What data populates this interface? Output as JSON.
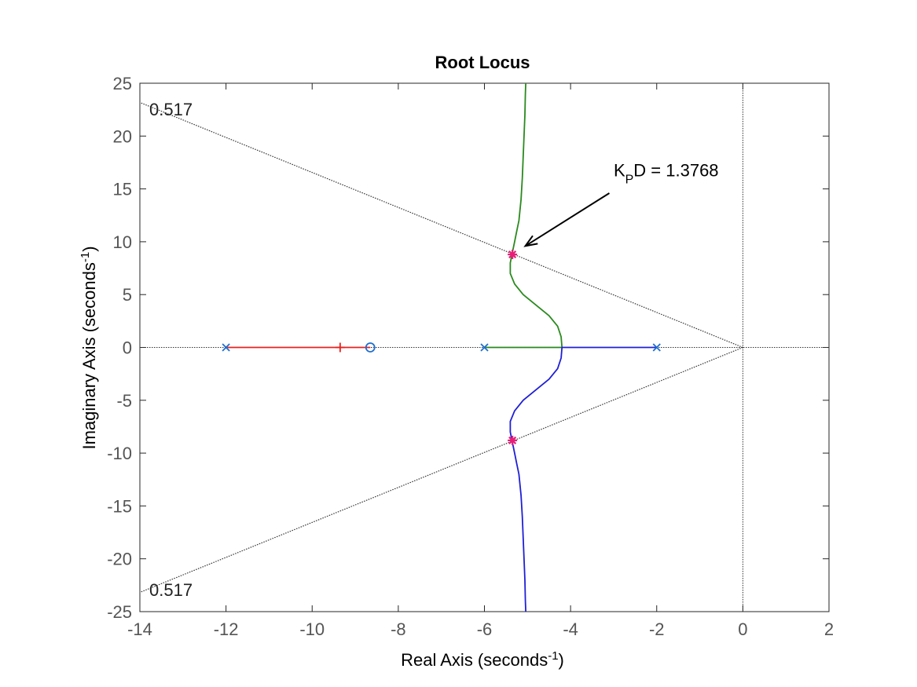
{
  "chart_data": {
    "type": "line",
    "title": "Root Locus",
    "xlabel": {
      "main": "Real Axis (seconds",
      "sup": "-1",
      "close": ")"
    },
    "ylabel": {
      "main": "Imaginary Axis (seconds",
      "sup": "-1",
      "close": ")"
    },
    "xlim": [
      -14,
      2
    ],
    "ylim": [
      -25,
      25
    ],
    "xticks": [
      -14,
      -12,
      -10,
      -8,
      -6,
      -4,
      -2,
      0,
      2
    ],
    "yticks": [
      -25,
      -20,
      -15,
      -10,
      -5,
      0,
      5,
      10,
      15,
      20,
      25
    ],
    "xtick_labels": [
      "-14",
      "-12",
      "-10",
      "-8",
      "-6",
      "-4",
      "-2",
      "0",
      "2"
    ],
    "ytick_labels": [
      "-25",
      "-20",
      "-15",
      "-10",
      "-5",
      "0",
      "5",
      "10",
      "15",
      "20",
      "25"
    ],
    "grid": false,
    "damping_line": {
      "zeta": 0.517,
      "label_upper": "0.517",
      "label_lower": "0.517",
      "color": "#333333"
    },
    "series": [
      {
        "color": "#e8221f",
        "points": [
          [
            -12,
            0
          ],
          [
            -8.65,
            0
          ]
        ]
      },
      {
        "color": "#2a8a1e",
        "points": [
          [
            -6,
            0
          ],
          [
            -4.2,
            0
          ],
          [
            -4.22,
            1
          ],
          [
            -4.3,
            2
          ],
          [
            -4.5,
            3
          ],
          [
            -4.8,
            4
          ],
          [
            -5.1,
            5
          ],
          [
            -5.3,
            6
          ],
          [
            -5.4,
            7
          ],
          [
            -5.4,
            8
          ],
          [
            -5.35,
            9
          ],
          [
            -5.3,
            10
          ],
          [
            -5.25,
            11
          ],
          [
            -5.2,
            12
          ],
          [
            -5.15,
            14
          ],
          [
            -5.12,
            16
          ],
          [
            -5.1,
            18
          ],
          [
            -5.08,
            20
          ],
          [
            -5.06,
            22
          ],
          [
            -5.05,
            24
          ],
          [
            -5.04,
            25
          ]
        ]
      },
      {
        "color": "#1f1fd6",
        "points": [
          [
            -2,
            0
          ],
          [
            -4.2,
            0
          ],
          [
            -4.22,
            -1
          ],
          [
            -4.3,
            -2
          ],
          [
            -4.5,
            -3
          ],
          [
            -4.8,
            -4
          ],
          [
            -5.1,
            -5
          ],
          [
            -5.3,
            -6
          ],
          [
            -5.4,
            -7
          ],
          [
            -5.4,
            -8
          ],
          [
            -5.35,
            -9
          ],
          [
            -5.3,
            -10
          ],
          [
            -5.25,
            -11
          ],
          [
            -5.2,
            -12
          ],
          [
            -5.15,
            -14
          ],
          [
            -5.12,
            -16
          ],
          [
            -5.1,
            -18
          ],
          [
            -5.08,
            -20
          ],
          [
            -5.06,
            -22
          ],
          [
            -5.05,
            -24
          ],
          [
            -5.04,
            -25
          ]
        ]
      }
    ],
    "poles": [
      [
        -12,
        0
      ],
      [
        -6,
        0
      ],
      [
        -2,
        0
      ]
    ],
    "zeros": [
      [
        -8.65,
        0
      ]
    ],
    "gain_tick": [
      -9.35,
      0
    ],
    "selected_points": [
      [
        -5.35,
        8.8
      ],
      [
        -5.35,
        -8.8
      ]
    ],
    "pole_color": "#1f6fd0",
    "selected_color": "#e81e78",
    "annotation": {
      "k": "K",
      "sub": "P",
      "rest": "D = 1.3768",
      "text_at": [
        -3.0,
        16.2
      ],
      "arrow_from": [
        -3.1,
        14.6
      ],
      "arrow_to": [
        -5.05,
        9.6
      ]
    }
  }
}
